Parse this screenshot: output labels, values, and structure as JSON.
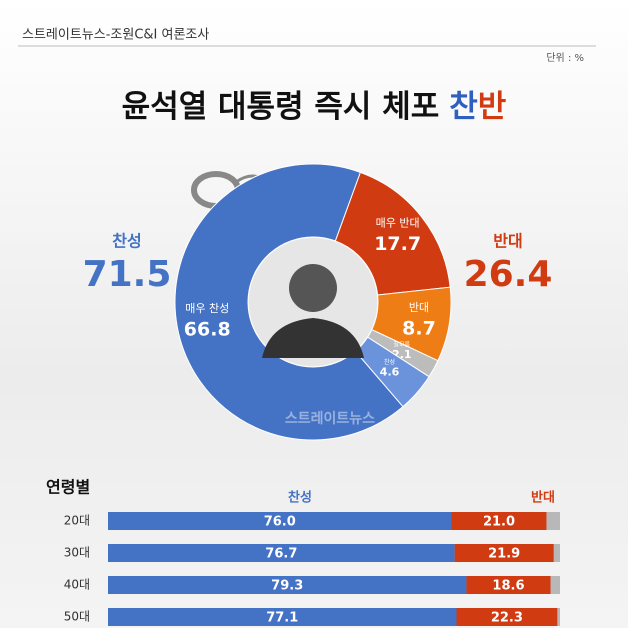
{
  "source": "스트레이트뉴스-조원C&I 여론조사",
  "unit": "단위 : %",
  "title_parts": [
    "윤석열 대통령 즉시 체포",
    "찬",
    "반"
  ],
  "chart_data": [
    {
      "type": "pie",
      "donut": true,
      "categories": [
        "매우 반대",
        "반대",
        "잘모름",
        "찬성",
        "매우 찬성"
      ],
      "values": [
        17.7,
        8.7,
        2.1,
        4.6,
        66.8
      ],
      "colors": [
        "#d13b12",
        "#ef7d16",
        "#bcbcbc",
        "#6b93dc",
        "#4472c4"
      ],
      "totals": [
        {
          "name": "찬성",
          "value": 71.5,
          "color": "#4472c4"
        },
        {
          "name": "반대",
          "value": 26.4,
          "color": "#d13b12"
        }
      ],
      "watermark": "스트레이트뉴스"
    },
    {
      "type": "bar",
      "orientation": "horizontal",
      "stacked": true,
      "label": "연령별",
      "categories": [
        "20대",
        "30대",
        "40대",
        "50대"
      ],
      "xlim": [
        0,
        100
      ],
      "series": [
        {
          "name": "찬성",
          "color": "#4472c4",
          "values": [
            76.0,
            76.7,
            79.3,
            77.1
          ],
          "value_labels": [
            "76.0",
            "76.7",
            "79.3",
            "77.1"
          ]
        },
        {
          "name": "반대",
          "color": "#d13b12",
          "values": [
            21.0,
            21.9,
            18.6,
            22.3
          ],
          "value_labels": [
            "21.0",
            "21.9",
            "18.6",
            "22.3"
          ]
        }
      ]
    }
  ]
}
